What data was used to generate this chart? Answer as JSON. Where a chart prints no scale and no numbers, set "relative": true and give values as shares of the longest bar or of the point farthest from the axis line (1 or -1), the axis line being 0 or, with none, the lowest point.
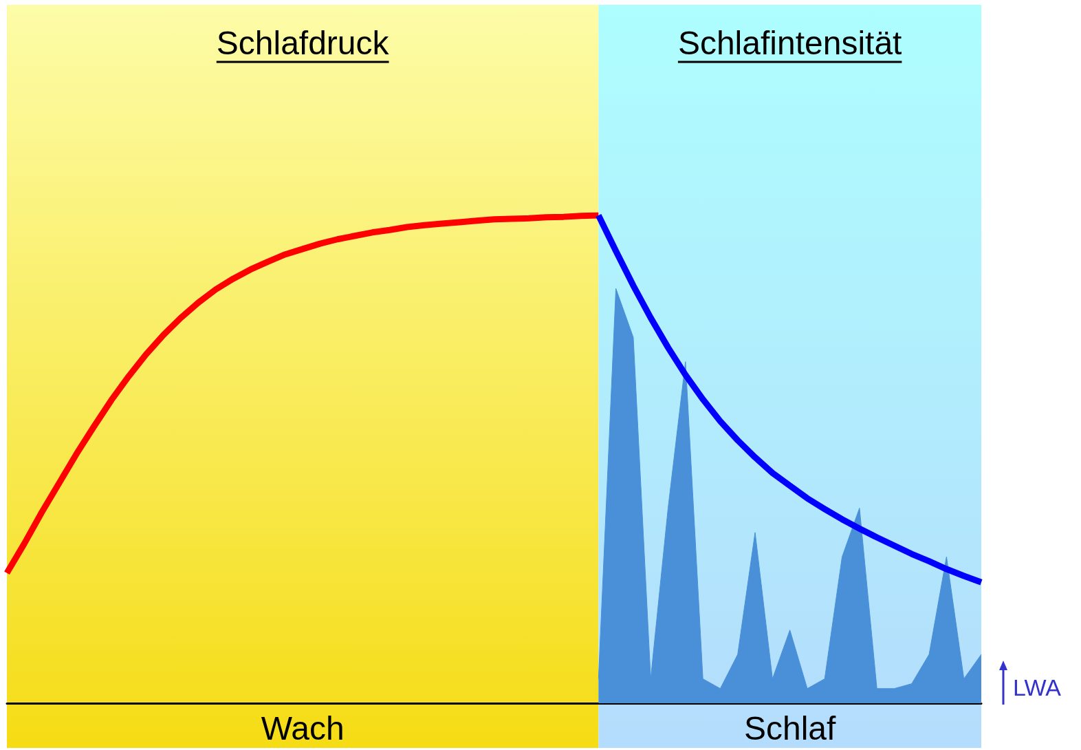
{
  "chart_data": {
    "type": "line",
    "relative": true,
    "legend": false,
    "grid": false,
    "marker": "none",
    "line_style": "solid",
    "categories": [
      null,
      null,
      null,
      null,
      null,
      null,
      null,
      null,
      null,
      null,
      null,
      null,
      null,
      null,
      null,
      null,
      null,
      null,
      null,
      null,
      null,
      null,
      null,
      null,
      null,
      null,
      null,
      null,
      null,
      null,
      null,
      null,
      null,
      null,
      null,
      null,
      null,
      null,
      null,
      null,
      null,
      null,
      null,
      null,
      null,
      null,
      null,
      null,
      null,
      null,
      null,
      null,
      null,
      null,
      null,
      null,
      null
    ],
    "series": [
      {
        "color": "#ff0000",
        "values": [
          0.267,
          0.327,
          0.391,
          0.451,
          0.511,
          0.567,
          0.621,
          0.67,
          0.715,
          0.755,
          0.79,
          0.821,
          0.848,
          0.87,
          0.889,
          0.905,
          0.92,
          0.931,
          0.942,
          0.951,
          0.958,
          0.965,
          0.97,
          0.976,
          0.98,
          0.983,
          0.986,
          0.989,
          0.992,
          0.993,
          0.994,
          0.996,
          0.997,
          0.999,
          1,
          null,
          null,
          null,
          null,
          null,
          null,
          null,
          null,
          null,
          null,
          null,
          null,
          null,
          null,
          null,
          null,
          null,
          null,
          null,
          null,
          null,
          null
        ]
      },
      {
        "color": "#0000ff",
        "values": [
          null,
          null,
          null,
          null,
          null,
          null,
          null,
          null,
          null,
          null,
          null,
          null,
          null,
          null,
          null,
          null,
          null,
          null,
          null,
          null,
          null,
          null,
          null,
          null,
          null,
          null,
          null,
          null,
          null,
          null,
          null,
          null,
          null,
          null,
          1,
          0.927,
          0.856,
          0.79,
          0.729,
          0.673,
          0.623,
          0.578,
          0.539,
          0.504,
          0.472,
          0.446,
          0.42,
          0.398,
          0.377,
          0.358,
          0.34,
          0.323,
          0.306,
          0.291,
          0.275,
          0.261,
          0.248
        ]
      },
      {
        "name": "LWA",
        "type": "area",
        "color": "#4a90d9",
        "values": [
          null,
          null,
          null,
          null,
          null,
          null,
          null,
          null,
          null,
          null,
          null,
          null,
          null,
          null,
          null,
          null,
          null,
          null,
          null,
          null,
          null,
          null,
          null,
          null,
          null,
          null,
          null,
          null,
          null,
          null,
          null,
          null,
          null,
          null,
          0.05,
          0.85,
          0.75,
          0.05,
          0.4,
          0.7,
          0.05,
          0.03,
          0.1,
          0.35,
          0.05,
          0.15,
          0.03,
          0.05,
          0.3,
          0.4,
          0.03,
          0.03,
          0.04,
          0.1,
          0.3,
          0.05,
          0.1
        ]
      }
    ],
    "annotations": [
      "Schlafdruck",
      "Schlafintensität",
      "Wach",
      "Schlaf"
    ]
  }
}
